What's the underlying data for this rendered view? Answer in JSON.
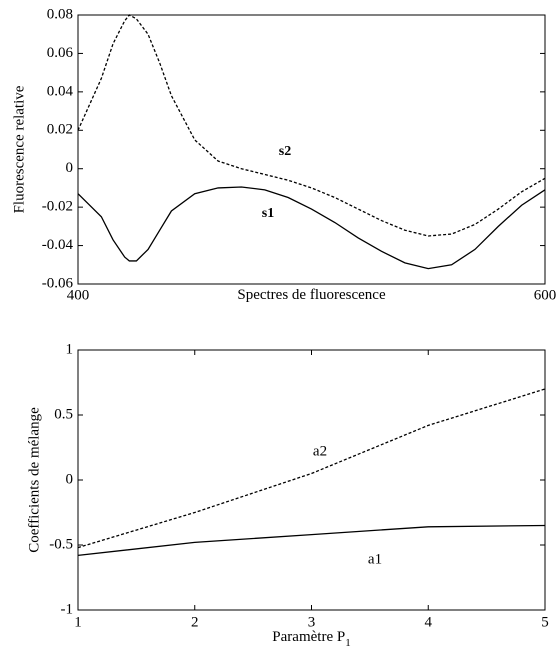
{
  "chart_data": [
    {
      "type": "line",
      "xlabel": "Spectres de fluorescence",
      "ylabel": "Fluorescence relative",
      "xlim": [
        400,
        600
      ],
      "xticks": [
        400,
        600
      ],
      "ylim": [
        -0.06,
        0.08
      ],
      "yticks": [
        0.08,
        0.06,
        0.04,
        0.02,
        0,
        -0.02,
        -0.04,
        -0.06
      ],
      "x": [
        400,
        410,
        415,
        420,
        422,
        425,
        430,
        435,
        440,
        450,
        460,
        470,
        480,
        490,
        500,
        510,
        520,
        530,
        540,
        550,
        560,
        570,
        580,
        590,
        600
      ],
      "series": [
        {
          "name": "s2",
          "color": "#000000",
          "dash": true,
          "values": [
            0.02,
            0.047,
            0.065,
            0.077,
            0.08,
            0.078,
            0.07,
            0.055,
            0.038,
            0.015,
            0.004,
            0.0,
            -0.003,
            -0.006,
            -0.01,
            -0.015,
            -0.021,
            -0.027,
            -0.032,
            -0.035,
            -0.034,
            -0.029,
            -0.021,
            -0.012,
            -0.005
          ]
        },
        {
          "name": "s1",
          "color": "#000000",
          "dash": false,
          "values": [
            -0.013,
            -0.025,
            -0.037,
            -0.046,
            -0.048,
            -0.048,
            -0.042,
            -0.032,
            -0.022,
            -0.013,
            -0.01,
            -0.0095,
            -0.011,
            -0.015,
            -0.021,
            -0.028,
            -0.036,
            -0.043,
            -0.049,
            -0.052,
            -0.05,
            -0.042,
            -0.03,
            -0.019,
            -0.011
          ]
        }
      ]
    },
    {
      "type": "line",
      "xlabel": "Paramètre P",
      "xlabel_subscript": "1",
      "ylabel": "Coefficients de mélange",
      "xlim": [
        1,
        5
      ],
      "xticks": [
        1,
        2,
        3,
        4,
        5
      ],
      "ylim": [
        -1,
        1
      ],
      "yticks": [
        1,
        0.5,
        0,
        -0.5,
        -1
      ],
      "x": [
        1,
        2,
        3,
        4,
        5
      ],
      "series": [
        {
          "name": "a2",
          "color": "#000000",
          "dash": true,
          "values": [
            -0.52,
            -0.25,
            0.05,
            0.42,
            0.7
          ]
        },
        {
          "name": "a1",
          "color": "#000000",
          "dash": false,
          "values": [
            -0.58,
            -0.48,
            -0.42,
            -0.36,
            -0.35
          ]
        }
      ]
    }
  ]
}
